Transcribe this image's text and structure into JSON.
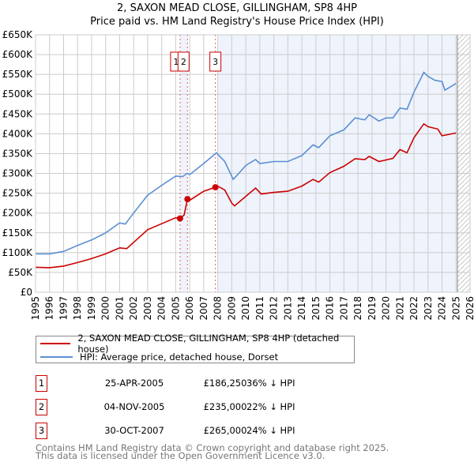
{
  "title_line1": "2, SAXON MEAD CLOSE, GILLINGHAM, SP8 4HP",
  "title_line2": "Price paid vs. HM Land Registry's House Price Index (HPI)",
  "chart_data": {
    "type": "line",
    "title": "2, SAXON MEAD CLOSE, GILLINGHAM, SP8 4HP — Price paid vs. HM Land Registry's House Price Index (HPI)",
    "xlim": [
      1995,
      2026
    ],
    "ylim": [
      0,
      650000
    ],
    "yticks": [
      0,
      50000,
      100000,
      150000,
      200000,
      250000,
      300000,
      350000,
      400000,
      450000,
      500000,
      550000,
      600000,
      650000
    ],
    "ytick_labels": [
      "£0",
      "£50K",
      "£100K",
      "£150K",
      "£200K",
      "£250K",
      "£300K",
      "£350K",
      "£400K",
      "£450K",
      "£500K",
      "£550K",
      "£600K",
      "£650K"
    ],
    "xticks": [
      1995,
      1996,
      1997,
      1998,
      1999,
      2000,
      2001,
      2002,
      2003,
      2004,
      2005,
      2006,
      2007,
      2008,
      2009,
      2010,
      2011,
      2012,
      2013,
      2014,
      2015,
      2016,
      2017,
      2018,
      2019,
      2020,
      2021,
      2022,
      2023,
      2024,
      2025,
      2026
    ],
    "grid": true,
    "shaded_ranges": [
      [
        2005.31,
        2005.84
      ],
      [
        2008.0,
        2025.1
      ]
    ],
    "hatched_from": 2025.1,
    "series": [
      {
        "name": "2, SAXON MEAD CLOSE, GILLINGHAM, SP8 4HP (detached house)",
        "color": "#cc0000",
        "x": [
          1995,
          1996,
          1997,
          1998,
          1999,
          2000,
          2001,
          2001.5,
          2002,
          2003,
          2004,
          2005,
          2005.31,
          2005.6,
          2005.84,
          2006,
          2007,
          2007.83,
          2008,
          2008.5,
          2009,
          2009.2,
          2010,
          2010.7,
          2011.1,
          2012,
          2013,
          2014,
          2014.8,
          2015.2,
          2016,
          2017,
          2017.8,
          2018.5,
          2018.8,
          2019.5,
          2020.5,
          2021,
          2021.5,
          2022,
          2022.7,
          2023,
          2023.7,
          2024,
          2025
        ],
        "y": [
          63000,
          62000,
          66000,
          75000,
          85000,
          97000,
          112000,
          110000,
          126000,
          158000,
          173000,
          188000,
          186250,
          195000,
          235000,
          232000,
          255000,
          265000,
          268000,
          258000,
          225000,
          218000,
          242000,
          263000,
          248000,
          252000,
          255000,
          268000,
          285000,
          278000,
          302000,
          318000,
          337000,
          335000,
          343000,
          330000,
          338000,
          360000,
          352000,
          390000,
          425000,
          418000,
          412000,
          395000,
          402000
        ]
      },
      {
        "name": "HPI: Average price, detached house, Dorset",
        "color": "#5b8fd4",
        "x": [
          1995,
          1996,
          1997,
          1998,
          1999,
          2000,
          2001,
          2001.4,
          2002,
          2003,
          2004,
          2005,
          2005.5,
          2005.8,
          2006,
          2007,
          2007.9,
          2008.5,
          2009.1,
          2009.5,
          2010,
          2010.7,
          2011,
          2012,
          2013,
          2014,
          2014.8,
          2015.2,
          2016,
          2017,
          2017.8,
          2018.5,
          2018.8,
          2019.5,
          2020,
          2020.5,
          2021,
          2021.5,
          2022,
          2022.7,
          2023,
          2023.5,
          2024,
          2024.2,
          2025
        ],
        "y": [
          97000,
          97000,
          103000,
          118000,
          132000,
          150000,
          175000,
          172000,
          200000,
          245000,
          270000,
          293000,
          292000,
          300000,
          297000,
          325000,
          352000,
          330000,
          285000,
          300000,
          320000,
          335000,
          325000,
          330000,
          330000,
          345000,
          372000,
          365000,
          395000,
          410000,
          440000,
          435000,
          448000,
          432000,
          440000,
          440000,
          465000,
          462000,
          505000,
          555000,
          545000,
          535000,
          532000,
          510000,
          527000
        ]
      }
    ],
    "sales": [
      {
        "label": "1",
        "x": 2005.31,
        "y": 186250
      },
      {
        "label": "2",
        "x": 2005.84,
        "y": 235000
      },
      {
        "label": "3",
        "x": 2007.83,
        "y": 265000
      }
    ]
  },
  "legend": [
    {
      "label": "2, SAXON MEAD CLOSE, GILLINGHAM, SP8 4HP (detached house)",
      "color": "#cc0000"
    },
    {
      "label": "HPI: Average price, detached house, Dorset",
      "color": "#5b8fd4"
    }
  ],
  "transactions": [
    {
      "num": "1",
      "date": "25-APR-2005",
      "price": "£186,250",
      "hpi": "36% ↓ HPI"
    },
    {
      "num": "2",
      "date": "04-NOV-2005",
      "price": "£235,000",
      "hpi": "22% ↓ HPI"
    },
    {
      "num": "3",
      "date": "30-OCT-2007",
      "price": "£265,000",
      "hpi": "24% ↓ HPI"
    }
  ],
  "footer_line1": "Contains HM Land Registry data © Crown copyright and database right 2025.",
  "footer_line2": "This data is licensed under the Open Government Licence v3.0."
}
